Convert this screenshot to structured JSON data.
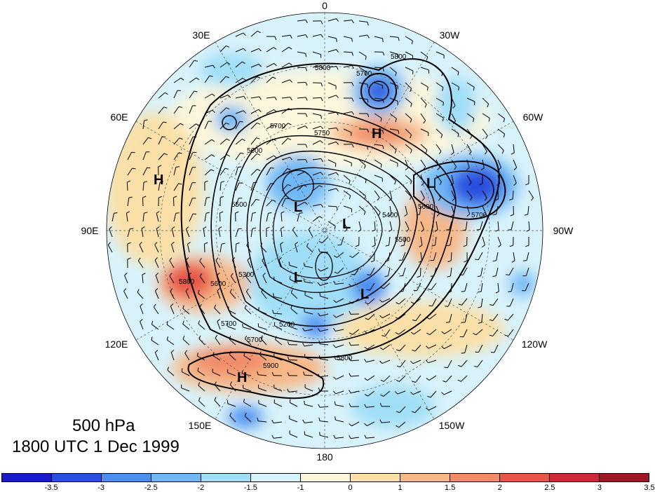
{
  "title": {
    "level": "500 hPa",
    "time": "1800 UTC 1 Dec 1999"
  },
  "longitude_labels": [
    {
      "text": "0",
      "angle": 0
    },
    {
      "text": "30W",
      "angle": 30
    },
    {
      "text": "60W",
      "angle": 60
    },
    {
      "text": "90W",
      "angle": 90
    },
    {
      "text": "120W",
      "angle": 120
    },
    {
      "text": "150W",
      "angle": 150
    },
    {
      "text": "180",
      "angle": 180
    },
    {
      "text": "150E",
      "angle": 210
    },
    {
      "text": "120E",
      "angle": 240
    },
    {
      "text": "90E",
      "angle": 270
    },
    {
      "text": "60E",
      "angle": 300
    },
    {
      "text": "30E",
      "angle": 330
    }
  ],
  "colorbar": {
    "colors": [
      "#1a1ac8",
      "#2b50e0",
      "#4a8ef0",
      "#70b8f5",
      "#a0def8",
      "#d8f2fa",
      "#fbf6dc",
      "#fae0a8",
      "#f6b888",
      "#f08a68",
      "#e85548",
      "#cc2a38",
      "#a01828"
    ],
    "labels": [
      "-3.5",
      "-3",
      "-2.5",
      "-2",
      "-1.5",
      "-1",
      "0",
      "1",
      "1.5",
      "2",
      "2.5",
      "3",
      "3.5"
    ]
  },
  "pressure_centers": [
    {
      "letter": "H",
      "pos": "60E"
    },
    {
      "letter": "H",
      "pos": "45W"
    },
    {
      "letter": "H",
      "pos": "155E"
    },
    {
      "letter": "L",
      "pos": "pole"
    },
    {
      "letter": "L",
      "pos": "pole"
    },
    {
      "letter": "L",
      "pos": "pole"
    },
    {
      "letter": "L",
      "pos": "pole"
    },
    {
      "letter": "L",
      "pos": "70W"
    }
  ],
  "contour_labels": [
    "5800",
    "5700",
    "5800",
    "5700",
    "5750",
    "5600",
    "5500",
    "5300",
    "5400",
    "5500",
    "5600",
    "5700",
    "5800",
    "5900",
    "5200",
    "5700",
    "5800",
    "5600",
    "5700"
  ]
}
